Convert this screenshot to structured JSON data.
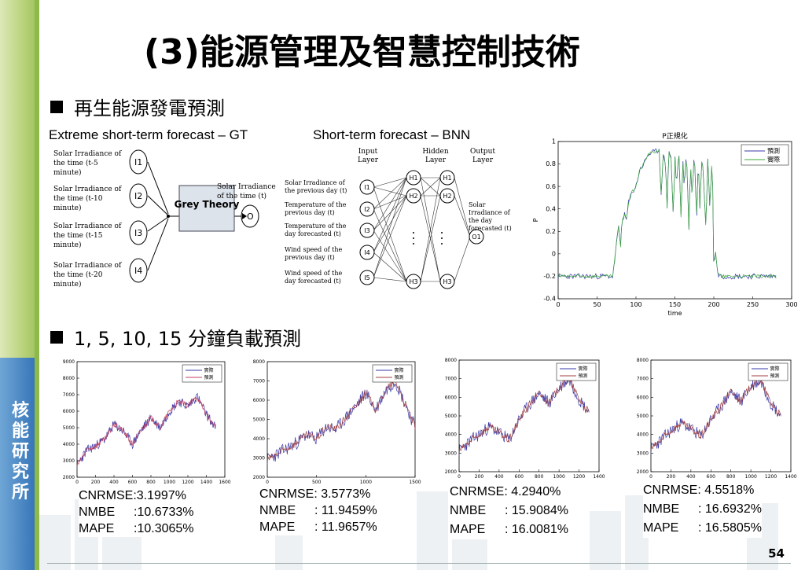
{
  "sidebar": {
    "label": "核能研究所",
    "green": "#9dc05a",
    "blue": "#2f6fb4"
  },
  "title": "(3)能源管理及智慧控制技術",
  "section1": {
    "heading": "再生能源發電預測",
    "gt": {
      "caption": "Extreme short-term forecast – GT",
      "inputs": [
        {
          "text": "Solar Irradiance of the time (t-5 minute)",
          "node": "I1"
        },
        {
          "text": "Solar Irradiance of the time (t-10 minute)",
          "node": "I2"
        },
        {
          "text": "Solar Irradiance of the time (t-15 minute)",
          "node": "I3"
        },
        {
          "text": "Solar Irradiance of the time (t-20 minute)",
          "node": "I4"
        }
      ],
      "box": "Grey Theory",
      "output_text": "Solar Irradiance of the time (t)",
      "output_node": "O"
    },
    "bnn": {
      "caption": "Short-term forecast – BNN",
      "layers": [
        "Input Layer",
        "Hidden Layer",
        "Hidden Layer",
        "Output Layer"
      ],
      "inputs": [
        "Solar Irradiance of the previous day (t)",
        "Temperature of the previous day (t)",
        "Temperature of the day forecasted (t)",
        "Wind speed of the previous day (t)",
        "Wind speed of the day forecasted (t)"
      ],
      "input_nodes": [
        "I1",
        "I2",
        "I3",
        "I4",
        "I5"
      ],
      "hidden_nodes": [
        "H1",
        "H2",
        "H3"
      ],
      "output_node": "O1",
      "output_text": "Solar Irradiance of the day forecasted (t)"
    }
  },
  "chart_data": [
    {
      "type": "line",
      "title": "P正規化",
      "xlabel": "time",
      "ylabel": "P",
      "xlim": [
        0,
        300
      ],
      "ylim": [
        -0.4,
        1
      ],
      "xticks": [
        "0",
        "50",
        "100",
        "150",
        "200",
        "250",
        "300"
      ],
      "yticks": [
        "1",
        "0.8",
        "0.6",
        "0.4",
        "0.2",
        "0",
        "-0.2",
        "-0.4"
      ],
      "legend": "top-right",
      "series": [
        {
          "name": "預測",
          "color": "#3a3aa8"
        },
        {
          "name": "實際",
          "color": "#3aa83a"
        }
      ],
      "x": [
        0,
        20,
        40,
        60,
        65,
        70,
        72,
        75,
        78,
        80,
        82,
        85,
        88,
        90,
        95,
        100,
        105,
        110,
        115,
        120,
        125,
        128,
        130,
        132,
        135,
        138,
        140,
        142,
        145,
        148,
        150,
        152,
        155,
        158,
        160,
        162,
        165,
        168,
        170,
        172,
        175,
        178,
        180,
        182,
        185,
        188,
        190,
        192,
        195,
        198,
        200,
        202,
        205,
        210,
        215,
        220,
        240,
        260,
        280
      ],
      "values": [
        -0.2,
        -0.2,
        -0.2,
        -0.2,
        -0.2,
        -0.2,
        -0.1,
        0.1,
        0.25,
        0.05,
        0.3,
        0.35,
        0.3,
        0.45,
        0.55,
        0.6,
        0.75,
        0.8,
        0.88,
        0.9,
        0.91,
        0.92,
        0.93,
        0.5,
        0.88,
        0.8,
        0.42,
        0.9,
        0.87,
        0.3,
        0.88,
        0.6,
        0.92,
        0.3,
        0.85,
        0.6,
        0.9,
        0.2,
        0.85,
        0.5,
        0.9,
        0.3,
        0.88,
        0.4,
        0.9,
        0.5,
        0.2,
        0.87,
        0.4,
        0.9,
        -0.15,
        0.05,
        -0.18,
        -0.2,
        -0.2,
        -0.2,
        -0.2,
        -0.2,
        -0.2
      ]
    },
    {
      "type": "line",
      "xlim": [
        0,
        1600
      ],
      "ylim": [
        2000,
        9000
      ],
      "xticks": [
        "0",
        "200",
        "400",
        "600",
        "800",
        "1000",
        "1200",
        "1400",
        "1600"
      ],
      "yticks": [
        "9000",
        "8000",
        "7000",
        "6000",
        "5000",
        "4000",
        "3000",
        "2000"
      ],
      "legend": "top-right",
      "series": [
        {
          "name": "實際",
          "color": "#3a3aa8"
        },
        {
          "name": "預測",
          "color": "#c04060"
        }
      ],
      "x": [
        0,
        100,
        200,
        300,
        400,
        500,
        600,
        700,
        800,
        900,
        1000,
        1100,
        1200,
        1300,
        1400,
        1500
      ],
      "values": [
        2700,
        3600,
        3900,
        4300,
        5200,
        4800,
        4000,
        4900,
        5600,
        5000,
        6000,
        6600,
        6300,
        6900,
        5800,
        5000
      ]
    },
    {
      "type": "line",
      "xlim": [
        0,
        1500
      ],
      "ylim": [
        2000,
        8000
      ],
      "xticks": [
        "0",
        "500",
        "1000",
        "1500"
      ],
      "yticks": [
        "8000",
        "7000",
        "6000",
        "5000",
        "4000",
        "3000",
        "2000"
      ],
      "legend": "top-right",
      "series": [
        {
          "name": "實際",
          "color": "#3a3aa8"
        },
        {
          "name": "預測",
          "color": "#a04040"
        }
      ],
      "x": [
        0,
        100,
        200,
        300,
        400,
        500,
        600,
        700,
        800,
        900,
        1000,
        1100,
        1200,
        1300,
        1400,
        1500
      ],
      "values": [
        2900,
        3200,
        3500,
        3800,
        4200,
        4000,
        4600,
        4500,
        5100,
        5700,
        6400,
        5500,
        6500,
        7000,
        5800,
        4600
      ]
    },
    {
      "type": "line",
      "xlim": [
        0,
        1400
      ],
      "ylim": [
        2000,
        8000
      ],
      "xticks": [
        "0",
        "200",
        "400",
        "600",
        "800",
        "1000",
        "1200",
        "1400"
      ],
      "yticks": [
        "8000",
        "7000",
        "6000",
        "5000",
        "4000",
        "3000",
        "2000"
      ],
      "legend": "top-right",
      "series": [
        {
          "name": "實際",
          "color": "#3a3aa8"
        },
        {
          "name": "預測",
          "color": "#a04040"
        }
      ],
      "x": [
        0,
        100,
        200,
        300,
        400,
        500,
        600,
        700,
        800,
        900,
        1000,
        1100,
        1200,
        1300
      ],
      "values": [
        3100,
        3600,
        4000,
        4400,
        4100,
        3700,
        4800,
        5600,
        6200,
        5700,
        6500,
        7000,
        5900,
        5200
      ]
    },
    {
      "type": "line",
      "xlim": [
        0,
        1400
      ],
      "ylim": [
        2000,
        8000
      ],
      "xticks": [
        "0",
        "200",
        "400",
        "600",
        "800",
        "1000",
        "1200",
        "1400"
      ],
      "yticks": [
        "8000",
        "7000",
        "6000",
        "5000",
        "4000",
        "3000",
        "2000"
      ],
      "legend": "top-right",
      "series": [
        {
          "name": "實際",
          "color": "#3a3aa8"
        },
        {
          "name": "預測",
          "color": "#a04040"
        }
      ],
      "x": [
        0,
        100,
        200,
        300,
        400,
        500,
        600,
        700,
        800,
        900,
        1000,
        1100,
        1200,
        1300
      ],
      "values": [
        3200,
        3700,
        4200,
        4600,
        4300,
        3900,
        4800,
        5500,
        6300,
        5800,
        6600,
        6900,
        5700,
        5000
      ]
    }
  ],
  "section2": {
    "heading": "1, 5, 10, 15 分鐘負載預測",
    "metrics": [
      {
        "cnrmse": "CNRMSE:3.1997%",
        "nmbe_label": "NMBE",
        "nmbe": ":10.6733%",
        "mape_label": "MAPE",
        "mape": ":10.3065%"
      },
      {
        "cnrmse": "CNRMSE:  3.5773%",
        "nmbe_label": "NMBE",
        "nmbe": ": 11.9459%",
        "mape_label": "MAPE",
        "mape": ": 11.9657%"
      },
      {
        "cnrmse": "CNRMSE:  4.2940%",
        "nmbe_label": "NMBE",
        "nmbe": ": 15.9084%",
        "mape_label": "MAPE",
        "mape": ": 16.0081%"
      },
      {
        "cnrmse": "CNRMSE:  4.5518%",
        "nmbe_label": "NMBE",
        "nmbe": ": 16.6932%",
        "mape_label": "MAPE",
        "mape": ": 16.5805%"
      }
    ]
  },
  "page_number": "54"
}
